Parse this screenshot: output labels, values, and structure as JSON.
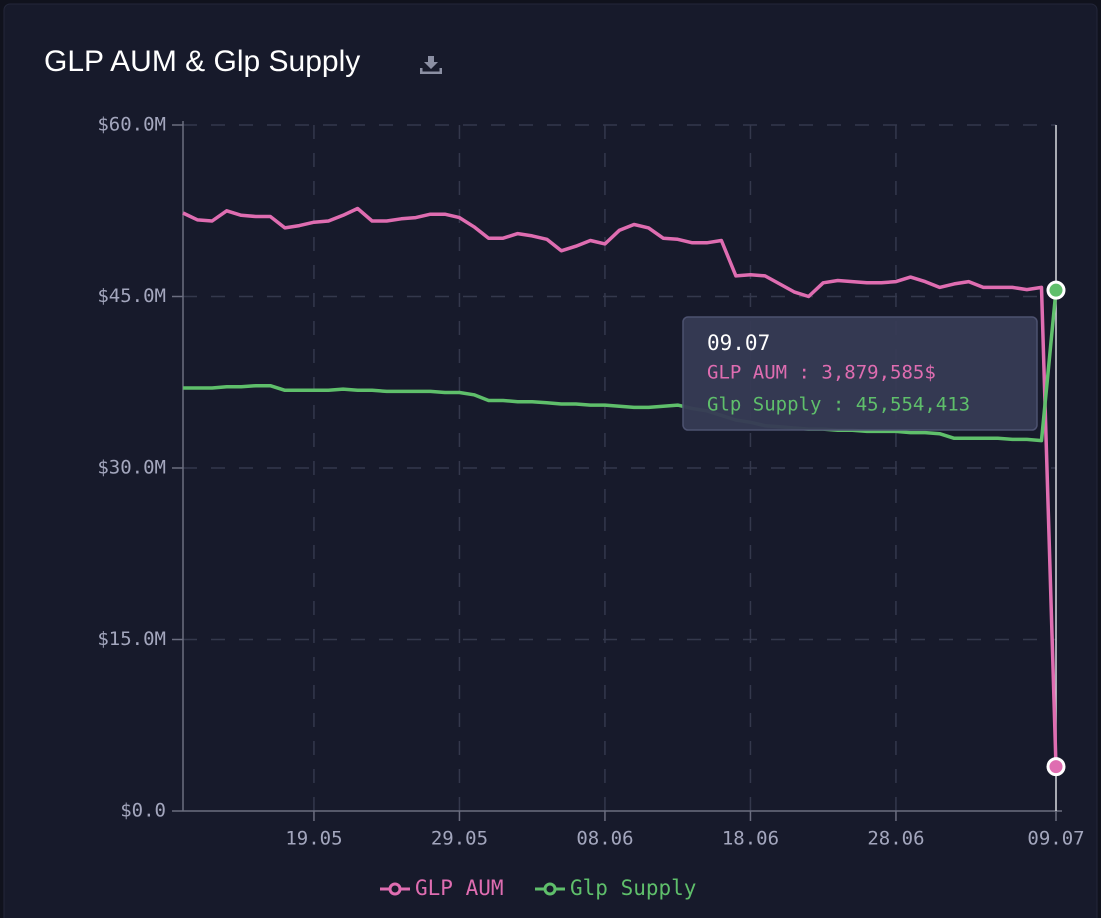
{
  "chart_data": {
    "type": "line",
    "title": "GLP AUM & Glp Supply",
    "categories": [
      null,
      null,
      null,
      null,
      null,
      null,
      null,
      null,
      null,
      "19.05",
      null,
      null,
      null,
      null,
      null,
      null,
      null,
      null,
      null,
      "29.05",
      null,
      null,
      null,
      null,
      null,
      null,
      null,
      null,
      null,
      "08.06",
      null,
      null,
      null,
      null,
      null,
      null,
      null,
      null,
      null,
      "18.06",
      null,
      null,
      null,
      null,
      null,
      null,
      null,
      null,
      null,
      "28.06",
      null,
      null,
      null,
      null,
      null,
      null,
      null,
      null,
      null,
      null,
      "09.07"
    ],
    "series": [
      {
        "name": "GLP AUM",
        "color": "#df6db1",
        "values": [
          52.3,
          51.7,
          51.6,
          52.5,
          52.1,
          52.0,
          52.0,
          51.0,
          51.2,
          51.5,
          51.6,
          52.1,
          52.7,
          51.6,
          51.6,
          51.8,
          51.9,
          52.2,
          52.2,
          51.9,
          51.1,
          50.1,
          50.1,
          50.5,
          50.3,
          50.0,
          49.0,
          49.4,
          49.9,
          49.6,
          50.8,
          51.3,
          51.0,
          50.1,
          50.0,
          49.7,
          49.7,
          49.9,
          46.8,
          46.9,
          46.8,
          46.1,
          45.4,
          45.0,
          46.2,
          46.4,
          46.3,
          46.2,
          46.2,
          46.3,
          46.7,
          46.3,
          45.8,
          46.1,
          46.3,
          45.8,
          45.8,
          45.8,
          45.6,
          45.8,
          3.879585
        ]
      },
      {
        "name": "Glp Supply",
        "color": "#5fbf6b",
        "values": [
          37.0,
          37.0,
          37.0,
          37.1,
          37.1,
          37.2,
          37.2,
          36.8,
          36.8,
          36.8,
          36.8,
          36.9,
          36.8,
          36.8,
          36.7,
          36.7,
          36.7,
          36.7,
          36.6,
          36.6,
          36.4,
          35.9,
          35.9,
          35.8,
          35.8,
          35.7,
          35.6,
          35.6,
          35.5,
          35.5,
          35.4,
          35.3,
          35.3,
          35.4,
          35.5,
          35.2,
          35.0,
          34.6,
          34.2,
          34.0,
          33.7,
          33.6,
          33.5,
          33.4,
          33.4,
          33.3,
          33.3,
          33.2,
          33.2,
          33.2,
          33.1,
          33.1,
          33.0,
          32.6,
          32.6,
          32.6,
          32.6,
          32.5,
          32.5,
          32.4,
          45.554413
        ]
      }
    ],
    "ylim": [
      0,
      60
    ],
    "yticks": [
      {
        "value": 0,
        "label": "$0.0"
      },
      {
        "value": 15,
        "label": "$15.0M"
      },
      {
        "value": 30,
        "label": "$30.0M"
      },
      {
        "value": 45,
        "label": "$45.0M"
      },
      {
        "value": 60,
        "label": "$60.0M"
      }
    ],
    "grid": true,
    "tooltip": {
      "title": "09.07",
      "lines": [
        "GLP AUM : 3,879,585$",
        "Glp Supply : 45,554,413"
      ]
    }
  }
}
